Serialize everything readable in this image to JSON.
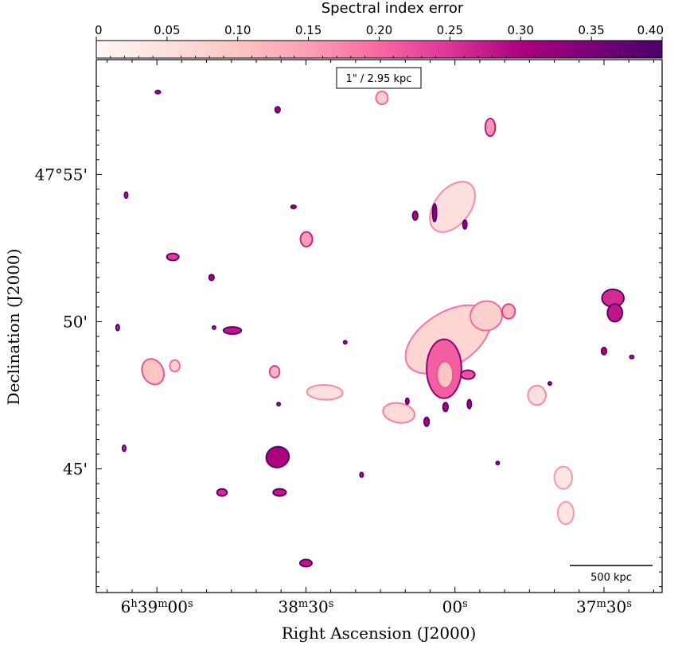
{
  "chart_data": {
    "type": "heatmap",
    "title": "Spectral index error",
    "colorbar": {
      "label": "Spectral index error",
      "range": [
        0,
        0.4
      ],
      "tick_values": [
        0,
        0.05,
        0.1,
        0.15,
        0.2,
        0.25,
        0.3,
        0.35,
        0.4
      ],
      "tick_labels": [
        "0",
        "0.05",
        "0.10",
        "0.15",
        "0.20",
        "0.25",
        "0.30",
        "0.35",
        "0.40"
      ],
      "colormap": "RdPu",
      "stops": [
        "#fff7f3",
        "#fde0dd",
        "#fcc5c0",
        "#fa9fb5",
        "#f768a1",
        "#dd3497",
        "#ae017e",
        "#7a0177",
        "#49006a"
      ],
      "placement": "top"
    },
    "xlabel": "Right Ascension (J2000)",
    "ylabel": "Declination (J2000)",
    "x_ticks": [
      {
        "sec": 0,
        "pre": "6",
        "sup1": "h",
        "mid": "39",
        "sup2": "m",
        "post": "00",
        "sup3": "s"
      },
      {
        "sec": 30,
        "pre": "",
        "sup1": "",
        "mid": "38",
        "sup2": "m",
        "post": "30",
        "sup3": "s"
      },
      {
        "sec": 60,
        "pre": "",
        "sup1": "",
        "mid": "",
        "sup2": "",
        "post": "00",
        "sup3": "s"
      },
      {
        "sec": 90,
        "pre": "",
        "sup1": "",
        "mid": "37",
        "sup2": "m",
        "post": "30",
        "sup3": "s"
      }
    ],
    "y_ticks": [
      {
        "arcmin": 55,
        "label": "47°55'"
      },
      {
        "arcmin": 50,
        "label": "50'"
      },
      {
        "arcmin": 45,
        "label": "45'"
      }
    ],
    "x_range_sec_offset": [
      -12.2,
      101.7
    ],
    "y_range_arcmin": [
      40.8,
      58.9
    ],
    "annotations": {
      "scale_text": "1\" / 2.95 kpc",
      "scalebar_text": "500 kpc"
    },
    "sources": [
      {
        "ra": 58.6,
        "dec": 49.4,
        "err": 0.07,
        "rx": 9.6,
        "ry": 0.9,
        "rot": -33
      },
      {
        "ra": 66.3,
        "dec": 50.2,
        "err": 0.08,
        "rx": 3.2,
        "ry": 0.5,
        "rot": -10
      },
      {
        "ra": 70.8,
        "dec": 50.35,
        "err": 0.12,
        "rx": 1.3,
        "ry": 0.25,
        "rot": 0
      },
      {
        "ra": 59.5,
        "dec": 53.9,
        "err": 0.05,
        "rx": 5.8,
        "ry": 0.6,
        "rot": -52
      },
      {
        "ra": 57.8,
        "dec": 48.4,
        "err": 0.21,
        "rx": 3.5,
        "ry": 1.0,
        "rot": 0
      },
      {
        "ra": 58.0,
        "dec": 48.2,
        "err": 0.1,
        "rx": 1.6,
        "ry": 0.45,
        "rot": 0
      },
      {
        "ra": 48.7,
        "dec": 46.9,
        "err": 0.06,
        "rx": 3.2,
        "ry": 0.33,
        "rot": 10
      },
      {
        "ra": 33.8,
        "dec": 47.6,
        "err": 0.05,
        "rx": 3.6,
        "ry": 0.25,
        "rot": 2
      },
      {
        "ra": 76.5,
        "dec": 47.5,
        "err": 0.05,
        "rx": 1.8,
        "ry": 0.33,
        "rot": 0
      },
      {
        "ra": 81.8,
        "dec": 44.7,
        "err": 0.04,
        "rx": 1.8,
        "ry": 0.38,
        "rot": 0
      },
      {
        "ra": 82.3,
        "dec": 43.5,
        "err": 0.04,
        "rx": 1.6,
        "ry": 0.38,
        "rot": 0
      },
      {
        "ra": 91.8,
        "dec": 50.8,
        "err": 0.26,
        "rx": 2.2,
        "ry": 0.3,
        "rot": 0
      },
      {
        "ra": 92.2,
        "dec": 50.3,
        "err": 0.28,
        "rx": 1.5,
        "ry": 0.3,
        "rot": 0
      },
      {
        "ra": -0.8,
        "dec": 48.3,
        "err": 0.1,
        "rx": 2.1,
        "ry": 0.45,
        "rot": -25
      },
      {
        "ra": 3.6,
        "dec": 48.5,
        "err": 0.08,
        "rx": 1.0,
        "ry": 0.2,
        "rot": 0
      },
      {
        "ra": 23.7,
        "dec": 48.3,
        "err": 0.12,
        "rx": 1.0,
        "ry": 0.2,
        "rot": 0
      },
      {
        "ra": 30.1,
        "dec": 52.8,
        "err": 0.15,
        "rx": 1.2,
        "ry": 0.25,
        "rot": 0
      },
      {
        "ra": 45.3,
        "dec": 57.6,
        "err": 0.08,
        "rx": 1.2,
        "ry": 0.22,
        "rot": 0
      },
      {
        "ra": 67.1,
        "dec": 56.6,
        "err": 0.16,
        "rx": 1.0,
        "ry": 0.3,
        "rot": 0
      },
      {
        "ra": 24.3,
        "dec": 45.4,
        "err": 0.3,
        "rx": 2.3,
        "ry": 0.35,
        "rot": -15
      },
      {
        "ra": 15.2,
        "dec": 49.7,
        "err": 0.28,
        "rx": 1.8,
        "ry": 0.12,
        "rot": 0
      },
      {
        "ra": 3.2,
        "dec": 52.2,
        "err": 0.24,
        "rx": 1.2,
        "ry": 0.12,
        "rot": 0
      },
      {
        "ra": 24.7,
        "dec": 44.2,
        "err": 0.28,
        "rx": 1.3,
        "ry": 0.12,
        "rot": 0
      },
      {
        "ra": 13.1,
        "dec": 44.2,
        "err": 0.26,
        "rx": 1.0,
        "ry": 0.12,
        "rot": 0
      },
      {
        "ra": 30.0,
        "dec": 41.8,
        "err": 0.28,
        "rx": 1.2,
        "ry": 0.12,
        "rot": 0
      },
      {
        "ra": 55.9,
        "dec": 53.7,
        "err": 0.32,
        "rx": 0.4,
        "ry": 0.3,
        "rot": 0
      },
      {
        "ra": 62.9,
        "dec": 47.2,
        "err": 0.3,
        "rx": 0.4,
        "ry": 0.15,
        "rot": 0
      },
      {
        "ra": 62.0,
        "dec": 53.3,
        "err": 0.32,
        "rx": 0.4,
        "ry": 0.15,
        "rot": 0
      },
      {
        "ra": 52.0,
        "dec": 53.6,
        "err": 0.3,
        "rx": 0.5,
        "ry": 0.15,
        "rot": 0
      },
      {
        "ra": 24.3,
        "dec": 57.2,
        "err": 0.3,
        "rx": 0.5,
        "ry": 0.1,
        "rot": 0
      },
      {
        "ra": 27.5,
        "dec": 53.9,
        "err": 0.3,
        "rx": 0.5,
        "ry": 0.05,
        "rot": 0
      },
      {
        "ra": 11.0,
        "dec": 51.5,
        "err": 0.3,
        "rx": 0.5,
        "ry": 0.1,
        "rot": 0
      },
      {
        "ra": 0.2,
        "dec": 57.8,
        "err": 0.28,
        "rx": 0.5,
        "ry": 0.05,
        "rot": 0
      },
      {
        "ra": -6.2,
        "dec": 54.3,
        "err": 0.26,
        "rx": 0.2,
        "ry": 0.1,
        "rot": 0
      },
      {
        "ra": -6.6,
        "dec": 45.7,
        "err": 0.26,
        "rx": 0.2,
        "ry": 0.1,
        "rot": 0
      },
      {
        "ra": -7.9,
        "dec": 49.8,
        "err": 0.26,
        "rx": 0.2,
        "ry": 0.1,
        "rot": 0
      },
      {
        "ra": 11.5,
        "dec": 49.8,
        "err": 0.26,
        "rx": 0.15,
        "ry": 0.05,
        "rot": 0
      },
      {
        "ra": 24.5,
        "dec": 47.2,
        "err": 0.28,
        "rx": 0.15,
        "ry": 0.05,
        "rot": 0
      },
      {
        "ra": 37.9,
        "dec": 49.3,
        "err": 0.28,
        "rx": 0.15,
        "ry": 0.05,
        "rot": 0
      },
      {
        "ra": 41.2,
        "dec": 44.8,
        "err": 0.28,
        "rx": 0.3,
        "ry": 0.08,
        "rot": 0
      },
      {
        "ra": 54.3,
        "dec": 46.6,
        "err": 0.3,
        "rx": 0.5,
        "ry": 0.15,
        "rot": 0
      },
      {
        "ra": 58.1,
        "dec": 47.1,
        "err": 0.3,
        "rx": 0.5,
        "ry": 0.15,
        "rot": 0
      },
      {
        "ra": 50.4,
        "dec": 47.3,
        "err": 0.3,
        "rx": 0.3,
        "ry": 0.1,
        "rot": 0
      },
      {
        "ra": 68.6,
        "dec": 45.2,
        "err": 0.28,
        "rx": 0.2,
        "ry": 0.05,
        "rot": 0
      },
      {
        "ra": 62.6,
        "dec": 48.2,
        "err": 0.22,
        "rx": 1.4,
        "ry": 0.15,
        "rot": 0
      },
      {
        "ra": 79.1,
        "dec": 47.9,
        "err": 0.28,
        "rx": 0.15,
        "ry": 0.05,
        "rot": 0
      },
      {
        "ra": 90.0,
        "dec": 49.0,
        "err": 0.3,
        "rx": 0.5,
        "ry": 0.12,
        "rot": 0
      },
      {
        "ra": 95.6,
        "dec": 48.8,
        "err": 0.28,
        "rx": 0.4,
        "ry": 0.05,
        "rot": 0
      }
    ]
  }
}
